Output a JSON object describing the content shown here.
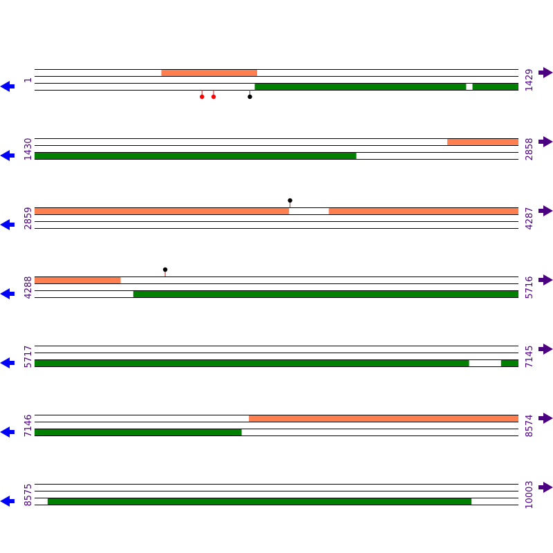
{
  "colors": {
    "track_line": "#000000",
    "forward_feature": "#ff7f50",
    "reverse_feature": "#008000",
    "position_text": "#4b0082",
    "forward_arrow": "#4b0082",
    "reverse_arrow": "#0000ff",
    "marker_red": "#ff0000",
    "marker_black": "#000000",
    "marker_stem": "#b22222"
  },
  "rows": [
    {
      "start_label": "1",
      "end_label": "1429",
      "forward_segments": [
        [
          0.262,
          0.46
        ]
      ],
      "reverse_segments": [
        [
          0.455,
          0.892
        ],
        [
          0.905,
          1.0
        ]
      ],
      "markers": [
        {
          "frac": 0.346,
          "strand": "reverse",
          "color": "red"
        },
        {
          "frac": 0.37,
          "strand": "reverse",
          "color": "red"
        },
        {
          "frac": 0.445,
          "strand": "reverse",
          "color": "black"
        }
      ]
    },
    {
      "start_label": "1430",
      "end_label": "2858",
      "forward_segments": [
        [
          0.853,
          1.0
        ]
      ],
      "reverse_segments": [
        [
          0.0,
          0.665
        ]
      ],
      "markers": []
    },
    {
      "start_label": "2859",
      "end_label": "4287",
      "forward_segments": [
        [
          0.0,
          0.526
        ],
        [
          0.608,
          1.0
        ]
      ],
      "reverse_segments": [],
      "markers": [
        {
          "frac": 0.528,
          "strand": "forward",
          "color": "black"
        }
      ]
    },
    {
      "start_label": "4288",
      "end_label": "5716",
      "forward_segments": [
        [
          0.0,
          0.178
        ]
      ],
      "reverse_segments": [
        [
          0.204,
          1.0
        ]
      ],
      "markers": [
        {
          "frac": 0.27,
          "strand": "forward",
          "color": "black"
        }
      ]
    },
    {
      "start_label": "5717",
      "end_label": "7145",
      "forward_segments": [],
      "reverse_segments": [
        [
          0.0,
          0.898
        ],
        [
          0.964,
          1.0
        ]
      ],
      "markers": []
    },
    {
      "start_label": "7146",
      "end_label": "8574",
      "forward_segments": [
        [
          0.443,
          1.0
        ]
      ],
      "reverse_segments": [
        [
          0.0,
          0.428
        ]
      ],
      "markers": []
    },
    {
      "start_label": "8575",
      "end_label": "10003",
      "forward_segments": [],
      "reverse_segments": [
        [
          0.027,
          0.903
        ]
      ],
      "markers": []
    }
  ]
}
